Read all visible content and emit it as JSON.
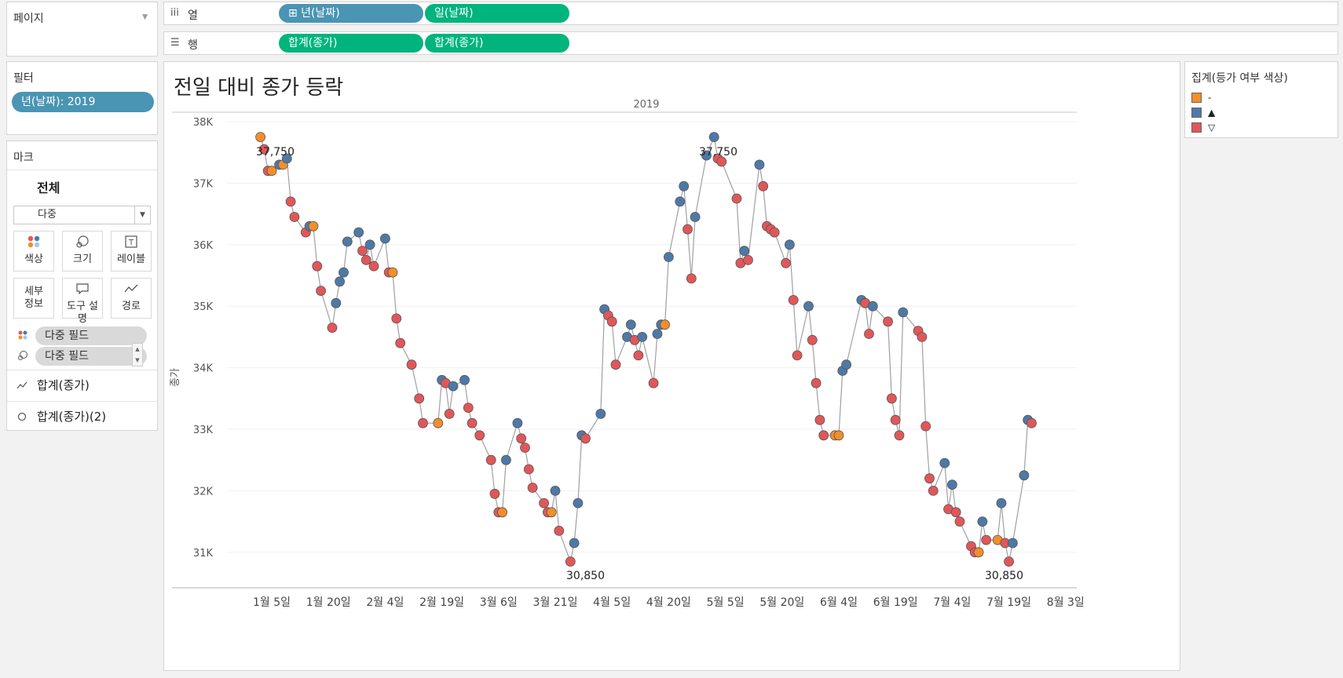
{
  "pages": {
    "title": "페이지"
  },
  "filters": {
    "title": "필터",
    "pill": "년(날짜): 2019"
  },
  "marks": {
    "title": "마크",
    "all": "전체",
    "type_select": "다중",
    "buttons": [
      {
        "label": "색상",
        "icon": "color-icon"
      },
      {
        "label": "크기",
        "icon": "size-icon"
      },
      {
        "label": "레이블",
        "icon": "label-icon"
      },
      {
        "label_line1": "세부",
        "label_line2": "정보",
        "icon": "detail-icon"
      },
      {
        "label": "도구 설명",
        "icon": "tooltip-icon"
      },
      {
        "label": "경로",
        "icon": "path-icon"
      }
    ],
    "fields": [
      {
        "label": "다중 필드",
        "icon": "color-icon"
      },
      {
        "label": "다중 필드",
        "icon": "size-icon"
      }
    ],
    "items": [
      {
        "label": "합계(종가)",
        "icon": "line-icon"
      },
      {
        "label": "합계(종가)(2)",
        "icon": "circle-icon"
      }
    ]
  },
  "columns_shelf": {
    "label": "열",
    "icon": "columns-icon",
    "pills": [
      "⊞ 년(날짜)",
      "일(날짜)"
    ]
  },
  "rows_shelf": {
    "label": "행",
    "icon": "rows-icon",
    "pills": [
      "합계(종가)",
      "합계(종가)"
    ]
  },
  "chart_title": "전일 대비 종가 등락",
  "legend": {
    "title": "집계(등가 여부 색상)",
    "items": [
      {
        "label": "-",
        "color": "#f28e2b"
      },
      {
        "label": "▲",
        "color": "#4e79a7"
      },
      {
        "label": "▽",
        "color": "#e15759"
      }
    ]
  },
  "chart_data": {
    "type": "line",
    "title": "전일 대비 종가 등락",
    "header": "2019",
    "ylabel": "종가",
    "xlabel": "",
    "ylim": [
      30450,
      38000
    ],
    "yticks": [
      "38K",
      "37K",
      "36K",
      "35K",
      "34K",
      "33K",
      "32K",
      "31K"
    ],
    "xticks": [
      "1월 5일",
      "1월 20일",
      "2월 4일",
      "2월 19일",
      "3월 6일",
      "3월 21일",
      "4월 5일",
      "4월 20일",
      "5월 5일",
      "5월 20일",
      "6월 4일",
      "6월 19일",
      "7월 4일",
      "7월 19일",
      "8월 3일"
    ],
    "colors": {
      "same": "#f28e2b",
      "up": "#4e79a7",
      "down": "#e15759",
      "line": "#a0a0a0"
    },
    "annotations": [
      "37,750",
      "37,750",
      "30,850",
      "30,850"
    ],
    "points": [
      [
        "2019-01-02",
        37750,
        "same"
      ],
      [
        "2019-01-03",
        37550,
        "down"
      ],
      [
        "2019-01-04",
        37200,
        "down"
      ],
      [
        "2019-01-05",
        37200,
        "same"
      ],
      [
        "2019-01-07",
        37300,
        "up"
      ],
      [
        "2019-01-08",
        37300,
        "same"
      ],
      [
        "2019-01-09",
        37400,
        "up"
      ],
      [
        "2019-01-10",
        36700,
        "down"
      ],
      [
        "2019-01-11",
        36450,
        "down"
      ],
      [
        "2019-01-14",
        36200,
        "down"
      ],
      [
        "2019-01-15",
        36300,
        "up"
      ],
      [
        "2019-01-16",
        36300,
        "same"
      ],
      [
        "2019-01-17",
        35650,
        "down"
      ],
      [
        "2019-01-18",
        35250,
        "down"
      ],
      [
        "2019-01-21",
        34650,
        "down"
      ],
      [
        "2019-01-22",
        35050,
        "up"
      ],
      [
        "2019-01-23",
        35400,
        "up"
      ],
      [
        "2019-01-24",
        35550,
        "up"
      ],
      [
        "2019-01-25",
        36050,
        "up"
      ],
      [
        "2019-01-28",
        36200,
        "up"
      ],
      [
        "2019-01-29",
        35900,
        "down"
      ],
      [
        "2019-01-30",
        35750,
        "down"
      ],
      [
        "2019-01-31",
        36000,
        "up"
      ],
      [
        "2019-02-01",
        35650,
        "down"
      ],
      [
        "2019-02-04",
        36100,
        "up"
      ],
      [
        "2019-02-05",
        35550,
        "down"
      ],
      [
        "2019-02-06",
        35550,
        "same"
      ],
      [
        "2019-02-07",
        34800,
        "down"
      ],
      [
        "2019-02-08",
        34400,
        "down"
      ],
      [
        "2019-02-11",
        34050,
        "down"
      ],
      [
        "2019-02-13",
        33500,
        "down"
      ],
      [
        "2019-02-14",
        33100,
        "down"
      ],
      [
        "2019-02-18",
        33100,
        "same"
      ],
      [
        "2019-02-19",
        33800,
        "up"
      ],
      [
        "2019-02-20",
        33750,
        "down"
      ],
      [
        "2019-02-21",
        33250,
        "down"
      ],
      [
        "2019-02-22",
        33700,
        "up"
      ],
      [
        "2019-02-25",
        33800,
        "up"
      ],
      [
        "2019-02-26",
        33350,
        "down"
      ],
      [
        "2019-02-27",
        33100,
        "down"
      ],
      [
        "2019-03-01",
        32900,
        "down"
      ],
      [
        "2019-03-04",
        32500,
        "down"
      ],
      [
        "2019-03-05",
        31950,
        "down"
      ],
      [
        "2019-03-06",
        31650,
        "down"
      ],
      [
        "2019-03-07",
        31650,
        "same"
      ],
      [
        "2019-03-08",
        32500,
        "up"
      ],
      [
        "2019-03-11",
        33100,
        "up"
      ],
      [
        "2019-03-12",
        32850,
        "down"
      ],
      [
        "2019-03-13",
        32700,
        "down"
      ],
      [
        "2019-03-14",
        32350,
        "down"
      ],
      [
        "2019-03-15",
        32050,
        "down"
      ],
      [
        "2019-03-18",
        31800,
        "down"
      ],
      [
        "2019-03-19",
        31650,
        "down"
      ],
      [
        "2019-03-20",
        31650,
        "same"
      ],
      [
        "2019-03-21",
        32000,
        "up"
      ],
      [
        "2019-03-22",
        31350,
        "down"
      ],
      [
        "2019-03-25",
        30850,
        "down"
      ],
      [
        "2019-03-26",
        31150,
        "up"
      ],
      [
        "2019-03-27",
        31800,
        "up"
      ],
      [
        "2019-03-28",
        32900,
        "up"
      ],
      [
        "2019-03-29",
        32850,
        "down"
      ],
      [
        "2019-04-02",
        33250,
        "up"
      ],
      [
        "2019-04-03",
        34950,
        "up"
      ],
      [
        "2019-04-04",
        34850,
        "down"
      ],
      [
        "2019-04-05",
        34750,
        "down"
      ],
      [
        "2019-04-06",
        34050,
        "down"
      ],
      [
        "2019-04-09",
        34500,
        "up"
      ],
      [
        "2019-04-10",
        34700,
        "up"
      ],
      [
        "2019-04-11",
        34450,
        "down"
      ],
      [
        "2019-04-12",
        34200,
        "down"
      ],
      [
        "2019-04-13",
        34500,
        "up"
      ],
      [
        "2019-04-16",
        33750,
        "down"
      ],
      [
        "2019-04-17",
        34550,
        "up"
      ],
      [
        "2019-04-18",
        34700,
        "up"
      ],
      [
        "2019-04-19",
        34700,
        "same"
      ],
      [
        "2019-04-20",
        35800,
        "up"
      ],
      [
        "2019-04-23",
        36700,
        "up"
      ],
      [
        "2019-04-24",
        36950,
        "up"
      ],
      [
        "2019-04-25",
        36250,
        "down"
      ],
      [
        "2019-04-26",
        35450,
        "down"
      ],
      [
        "2019-04-27",
        36450,
        "up"
      ],
      [
        "2019-04-30",
        37450,
        "up"
      ],
      [
        "2019-05-02",
        37750,
        "up"
      ],
      [
        "2019-05-03",
        37400,
        "down"
      ],
      [
        "2019-05-04",
        37350,
        "down"
      ],
      [
        "2019-05-08",
        36750,
        "down"
      ],
      [
        "2019-05-09",
        35700,
        "down"
      ],
      [
        "2019-05-10",
        35900,
        "up"
      ],
      [
        "2019-05-11",
        35750,
        "down"
      ],
      [
        "2019-05-14",
        37300,
        "up"
      ],
      [
        "2019-05-15",
        36950,
        "down"
      ],
      [
        "2019-05-16",
        36300,
        "down"
      ],
      [
        "2019-05-17",
        36250,
        "down"
      ],
      [
        "2019-05-18",
        36200,
        "down"
      ],
      [
        "2019-05-21",
        35700,
        "down"
      ],
      [
        "2019-05-22",
        36000,
        "up"
      ],
      [
        "2019-05-23",
        35100,
        "down"
      ],
      [
        "2019-05-24",
        34200,
        "down"
      ],
      [
        "2019-05-27",
        35000,
        "up"
      ],
      [
        "2019-05-28",
        34450,
        "down"
      ],
      [
        "2019-05-29",
        33750,
        "down"
      ],
      [
        "2019-05-30",
        33150,
        "down"
      ],
      [
        "2019-05-31",
        32900,
        "down"
      ],
      [
        "2019-06-03",
        32900,
        "same"
      ],
      [
        "2019-06-04",
        32900,
        "same"
      ],
      [
        "2019-06-05",
        33950,
        "up"
      ],
      [
        "2019-06-06",
        34050,
        "up"
      ],
      [
        "2019-06-10",
        35100,
        "up"
      ],
      [
        "2019-06-11",
        35050,
        "down"
      ],
      [
        "2019-06-12",
        34550,
        "down"
      ],
      [
        "2019-06-13",
        35000,
        "up"
      ],
      [
        "2019-06-17",
        34750,
        "down"
      ],
      [
        "2019-06-18",
        33500,
        "down"
      ],
      [
        "2019-06-19",
        33150,
        "down"
      ],
      [
        "2019-06-20",
        32900,
        "down"
      ],
      [
        "2019-06-21",
        34900,
        "up"
      ],
      [
        "2019-06-25",
        34600,
        "down"
      ],
      [
        "2019-06-26",
        34500,
        "down"
      ],
      [
        "2019-06-27",
        33050,
        "down"
      ],
      [
        "2019-06-28",
        32200,
        "down"
      ],
      [
        "2019-06-29",
        32000,
        "down"
      ],
      [
        "2019-07-02",
        32450,
        "up"
      ],
      [
        "2019-07-03",
        31700,
        "down"
      ],
      [
        "2019-07-04",
        32100,
        "up"
      ],
      [
        "2019-07-05",
        31650,
        "down"
      ],
      [
        "2019-07-06",
        31500,
        "down"
      ],
      [
        "2019-07-09",
        31100,
        "down"
      ],
      [
        "2019-07-10",
        31000,
        "down"
      ],
      [
        "2019-07-11",
        31000,
        "same"
      ],
      [
        "2019-07-12",
        31500,
        "up"
      ],
      [
        "2019-07-13",
        31200,
        "down"
      ],
      [
        "2019-07-16",
        31200,
        "same"
      ],
      [
        "2019-07-17",
        31800,
        "up"
      ],
      [
        "2019-07-18",
        31150,
        "down"
      ],
      [
        "2019-07-19",
        30850,
        "down"
      ],
      [
        "2019-07-20",
        31150,
        "up"
      ],
      [
        "2019-07-23",
        32250,
        "up"
      ],
      [
        "2019-07-24",
        33150,
        "up"
      ],
      [
        "2019-07-25",
        33100,
        "down"
      ]
    ]
  }
}
